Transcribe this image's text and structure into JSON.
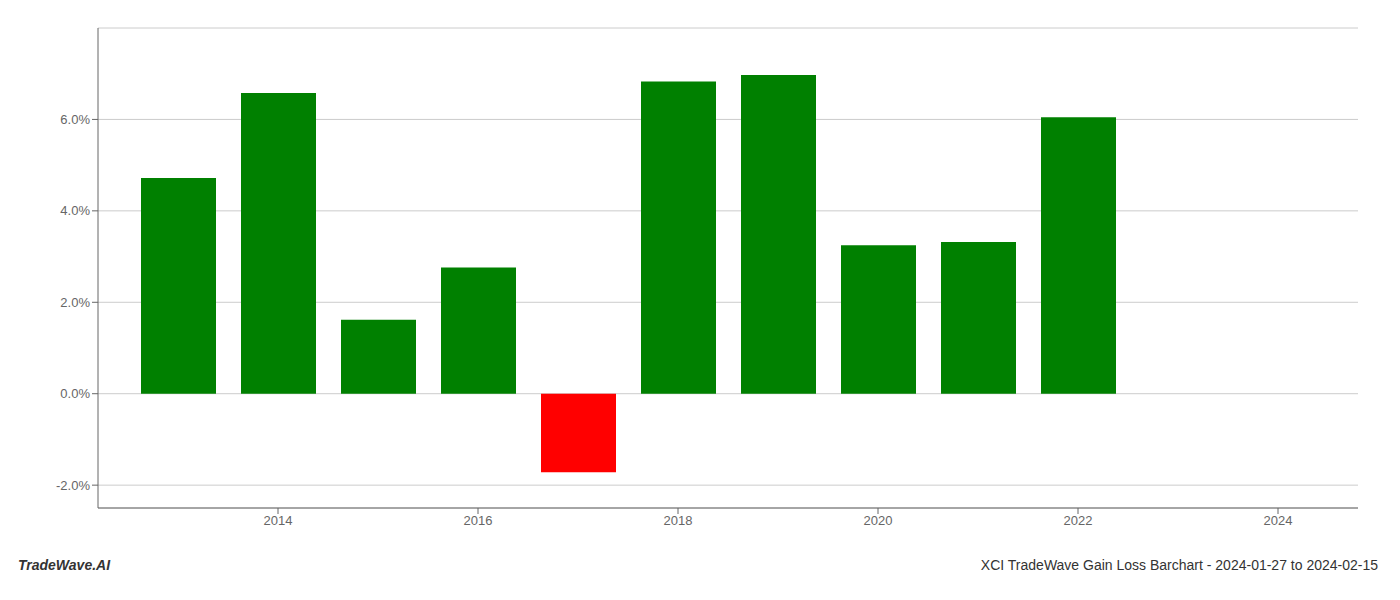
{
  "chart_data": {
    "type": "bar",
    "title": "XCI TradeWave Gain Loss Barchart - 2024-01-27 to 2024-02-15",
    "annotations": [
      "TradeWave.AI"
    ],
    "x": [
      2013,
      2014,
      2015,
      2016,
      2017,
      2018,
      2019,
      2020,
      2021,
      2022
    ],
    "values": [
      4.72,
      6.58,
      1.62,
      2.76,
      -1.72,
      6.83,
      6.97,
      3.25,
      3.32,
      6.05
    ],
    "colors": [
      "#008000",
      "#008000",
      "#008000",
      "#008000",
      "#ff0000",
      "#008000",
      "#008000",
      "#008000",
      "#008000",
      "#008000"
    ],
    "xlim": [
      2012.2,
      2024.8
    ],
    "xticks": [
      2014,
      2016,
      2018,
      2020,
      2022,
      2024
    ],
    "ylim": [
      -2.5,
      8.0
    ],
    "yticks": [
      {
        "value": -2.0,
        "label": "-2.0%"
      },
      {
        "value": 0.0,
        "label": "0.0%"
      },
      {
        "value": 2.0,
        "label": "2.0%"
      },
      {
        "value": 4.0,
        "label": "4.0%"
      },
      {
        "value": 6.0,
        "label": "6.0%"
      }
    ],
    "grid": true
  }
}
